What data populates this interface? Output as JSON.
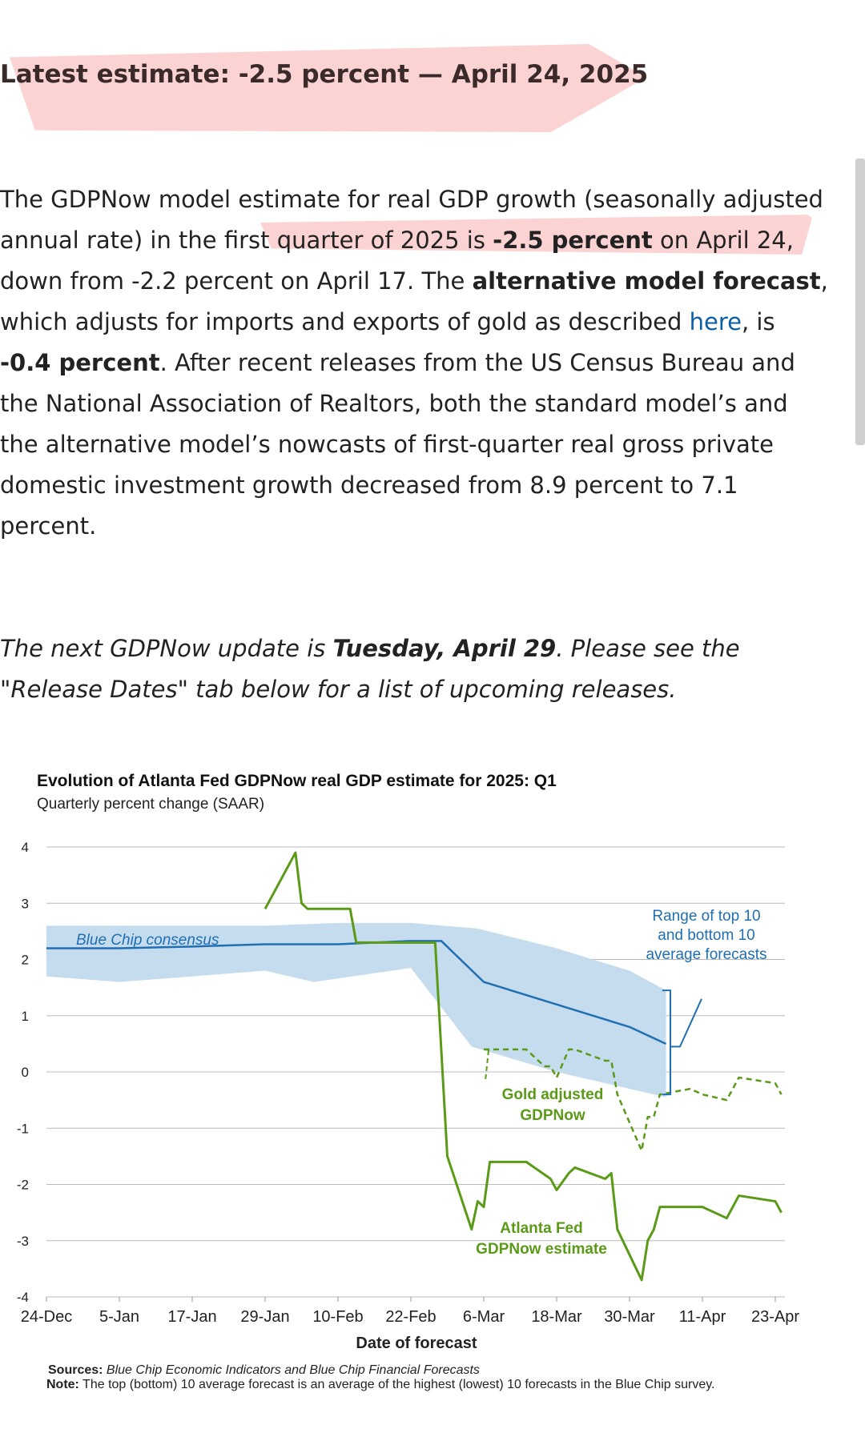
{
  "headline": "Latest estimate: -2.5 percent — April 24, 2025",
  "paragraph": {
    "s1": "The GDPNow model estimate for real GDP growth (seasonally adjusted annual rate) in the first quarter of 2025 is ",
    "s1_bold": "-2.5 percent",
    "s2": " on April 24, down from -2.2 percent on April 17. The ",
    "alt_bold": "alternative model forecast",
    "s3": ", which adjusts for imports and exports of gold as described ",
    "link_text": "here",
    "s4": ", is ",
    "alt_value": "-0.4 percent",
    "s5": ". After recent releases from the US Census Bureau and the National Association of Realtors, both the standard model’s and the alternative model’s nowcasts of first-quarter real gross private domestic investment growth decreased from 8.9 percent to 7.1 percent."
  },
  "next_update": {
    "prefix": "The next GDPNow update is ",
    "date": "Tuesday, April 29",
    "suffix": ". Please see the \"Release Dates\" tab below for a list of upcoming releases."
  },
  "colors": {
    "highlight": "#fbd3d3",
    "link": "#0b5fa5",
    "blue_line": "#1f6fb2",
    "band": "#c5dcee",
    "green": "#5a9a17"
  },
  "chart_data": {
    "type": "line",
    "title": "Evolution of Atlanta Fed GDPNow real GDP estimate for 2025: Q1",
    "subtitle": "Quarterly percent change (SAAR)",
    "xlabel": "Date of forecast",
    "x_ticks": [
      "24-Dec",
      "5-Jan",
      "17-Jan",
      "29-Jan",
      "10-Feb",
      "22-Feb",
      "6-Mar",
      "18-Mar",
      "30-Mar",
      "11-Apr",
      "23-Apr"
    ],
    "y_ticks": [
      "4",
      "3",
      "2",
      "1",
      "0",
      "-1",
      "-2",
      "-3",
      "-4"
    ],
    "ylim": [
      -4,
      4
    ],
    "grid": true,
    "annotations": {
      "blue_chip": "Blue Chip consensus",
      "range": [
        "Range of top 10",
        "and bottom 10",
        "average forecasts"
      ],
      "gold": [
        "Gold adjusted",
        "GDPNow"
      ],
      "gdpnow": [
        "Atlanta Fed",
        "GDPNow estimate"
      ]
    },
    "series": [
      {
        "name": "Blue Chip consensus",
        "points": [
          [
            "2024-12-24",
            2.2
          ],
          [
            "2025-01-05",
            2.2
          ],
          [
            "2025-01-17",
            2.23
          ],
          [
            "2025-01-29",
            2.27
          ],
          [
            "2025-02-10",
            2.27
          ],
          [
            "2025-02-22",
            2.33
          ],
          [
            "2025-02-27",
            2.33
          ],
          [
            "2025-03-06",
            1.6
          ],
          [
            "2025-03-18",
            1.2
          ],
          [
            "2025-03-30",
            0.8
          ],
          [
            "2025-04-05",
            0.5
          ]
        ]
      },
      {
        "name": "Range of top 10 and bottom 10 average forecasts",
        "upper": [
          [
            "2024-12-24",
            2.6
          ],
          [
            "2025-01-05",
            2.6
          ],
          [
            "2025-01-17",
            2.6
          ],
          [
            "2025-01-29",
            2.6
          ],
          [
            "2025-02-10",
            2.65
          ],
          [
            "2025-02-22",
            2.65
          ],
          [
            "2025-03-05",
            2.55
          ],
          [
            "2025-03-18",
            2.2
          ],
          [
            "2025-03-30",
            1.8
          ],
          [
            "2025-04-05",
            1.45
          ]
        ],
        "lower": [
          [
            "2024-12-24",
            1.7
          ],
          [
            "2025-01-05",
            1.6
          ],
          [
            "2025-01-17",
            1.7
          ],
          [
            "2025-01-29",
            1.8
          ],
          [
            "2025-02-06",
            1.6
          ],
          [
            "2025-02-22",
            1.85
          ],
          [
            "2025-03-04",
            0.45
          ],
          [
            "2025-03-18",
            0.0
          ],
          [
            "2025-03-30",
            -0.3
          ],
          [
            "2025-04-05",
            -0.45
          ]
        ]
      },
      {
        "name": "Atlanta Fed GDPNow estimate",
        "points": [
          [
            "2025-01-29",
            2.9
          ],
          [
            "2025-02-03",
            3.9
          ],
          [
            "2025-02-04",
            3.0
          ],
          [
            "2025-02-05",
            2.9
          ],
          [
            "2025-02-12",
            2.9
          ],
          [
            "2025-02-13",
            2.3
          ],
          [
            "2025-02-26",
            2.3
          ],
          [
            "2025-02-28",
            -1.5
          ],
          [
            "2025-03-04",
            -2.8
          ],
          [
            "2025-03-05",
            -2.3
          ],
          [
            "2025-03-06",
            -2.4
          ],
          [
            "2025-03-07",
            -1.6
          ],
          [
            "2025-03-13",
            -1.6
          ],
          [
            "2025-03-17",
            -1.9
          ],
          [
            "2025-03-18",
            -2.1
          ],
          [
            "2025-03-20",
            -1.8
          ],
          [
            "2025-03-21",
            -1.7
          ],
          [
            "2025-03-26",
            -1.9
          ],
          [
            "2025-03-27",
            -1.8
          ],
          [
            "2025-03-28",
            -2.8
          ],
          [
            "2025-04-01",
            -3.7
          ],
          [
            "2025-04-02",
            -3.0
          ],
          [
            "2025-04-03",
            -2.8
          ],
          [
            "2025-04-04",
            -2.4
          ],
          [
            "2025-04-09",
            -2.4
          ],
          [
            "2025-04-11",
            -2.4
          ],
          [
            "2025-04-15",
            -2.6
          ],
          [
            "2025-04-17",
            -2.2
          ],
          [
            "2025-04-23",
            -2.3
          ],
          [
            "2025-04-24",
            -2.5
          ]
        ]
      },
      {
        "name": "Gold adjusted GDPNow",
        "points": [
          [
            "2025-03-06",
            0.4
          ],
          [
            "2025-03-07",
            0.4
          ],
          [
            "2025-03-13",
            0.4
          ],
          [
            "2025-03-16",
            0.1
          ],
          [
            "2025-03-17",
            0.1
          ],
          [
            "2025-03-18",
            -0.1
          ],
          [
            "2025-03-20",
            0.4
          ],
          [
            "2025-03-21",
            0.4
          ],
          [
            "2025-03-26",
            0.2
          ],
          [
            "2025-03-27",
            0.2
          ],
          [
            "2025-03-28",
            -0.4
          ],
          [
            "2025-04-01",
            -1.4
          ],
          [
            "2025-04-02",
            -0.8
          ],
          [
            "2025-04-03",
            -0.8
          ],
          [
            "2025-04-04",
            -0.4
          ],
          [
            "2025-04-09",
            -0.3
          ],
          [
            "2025-04-11",
            -0.4
          ],
          [
            "2025-04-15",
            -0.5
          ],
          [
            "2025-04-17",
            -0.1
          ],
          [
            "2025-04-23",
            -0.2
          ],
          [
            "2025-04-24",
            -0.4
          ]
        ]
      }
    ],
    "sources_label": "Sources:",
    "sources_text": "Blue Chip Economic Indicators and Blue Chip Financial Forecasts",
    "note_label": "Note:",
    "note_text": "The top (bottom) 10 average forecast is an average of the highest (lowest) 10 forecasts in the Blue Chip survey."
  }
}
